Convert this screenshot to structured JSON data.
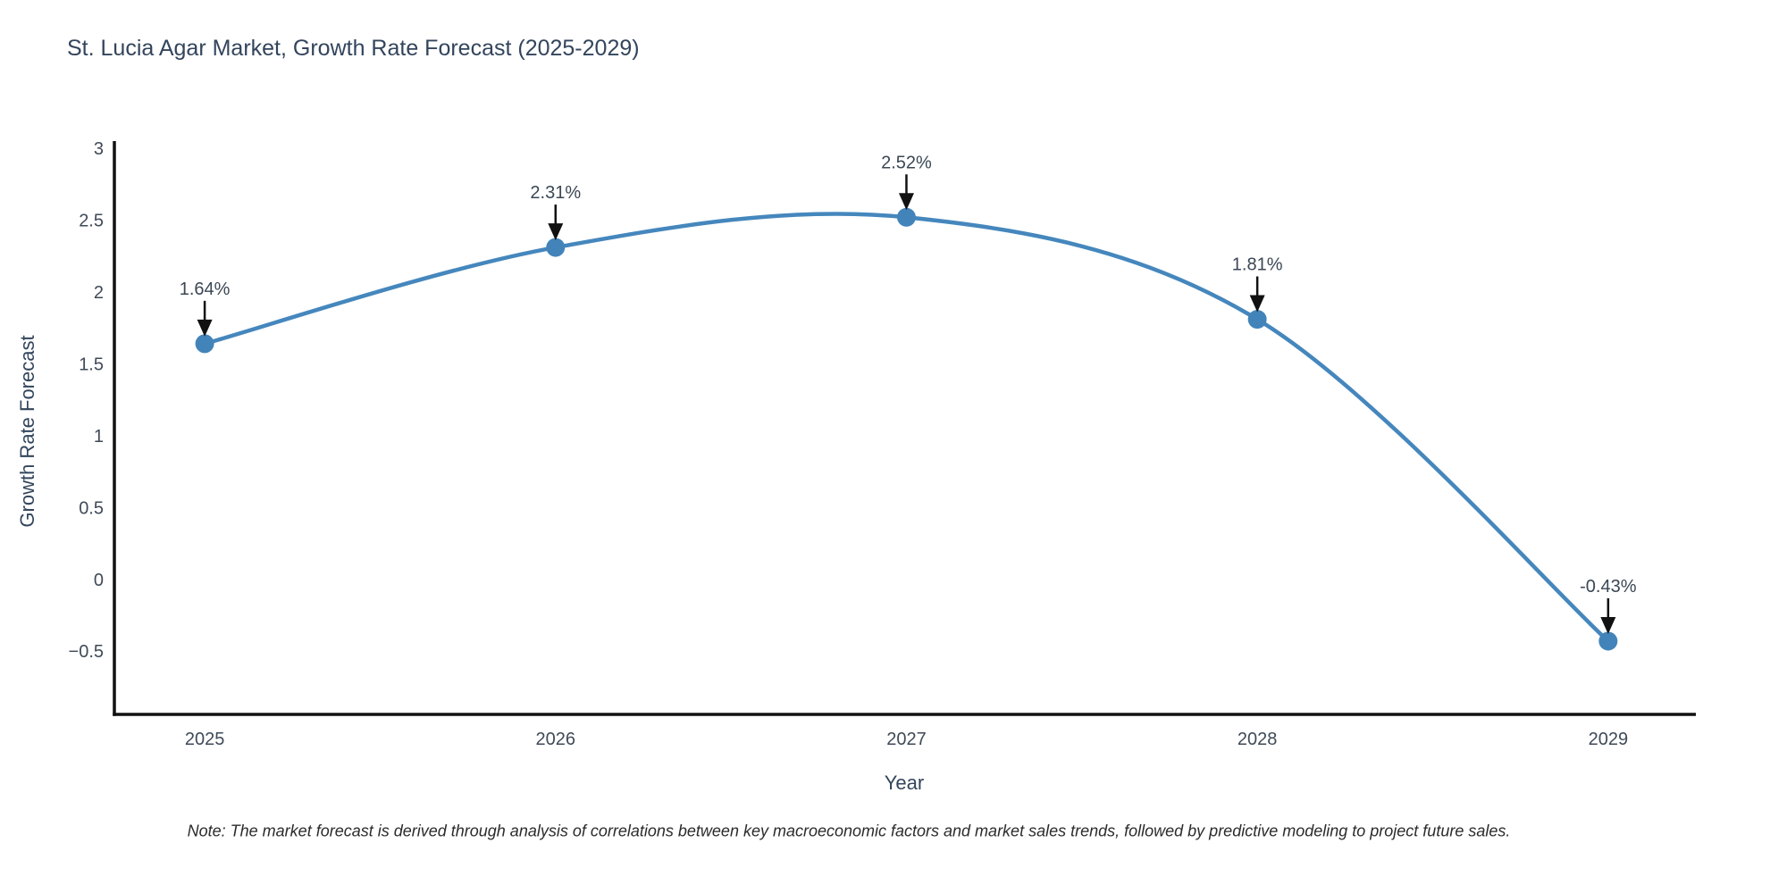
{
  "note": "Note: The market forecast is derived through analysis of correlations between key macroeconomic factors and market sales trends, followed by predictive modeling to project future sales.",
  "chart_data": {
    "type": "line",
    "title": "St. Lucia Agar Market, Growth Rate Forecast (2025-2029)",
    "xlabel": "Year",
    "ylabel": "Growth Rate Forecast",
    "x": [
      2025,
      2026,
      2027,
      2028,
      2029
    ],
    "x_tick_labels": [
      "2025",
      "2026",
      "2027",
      "2028",
      "2029"
    ],
    "values": [
      1.64,
      2.31,
      2.52,
      1.81,
      -0.43
    ],
    "point_labels": [
      "1.64%",
      "2.31%",
      "2.52%",
      "1.81%",
      "-0.43%"
    ],
    "y_ticks": [
      3,
      2.5,
      2,
      1.5,
      1,
      0.5,
      0,
      -0.5
    ],
    "y_tick_labels": [
      "3",
      "2.5",
      "2",
      "1.5",
      "1",
      "0.5",
      "0",
      "−0.5"
    ],
    "xlim": [
      2024.74,
      2029.25
    ],
    "ylim": [
      -0.94,
      3.05
    ],
    "grid": false,
    "legend": false,
    "line_shape": "spline",
    "colors": {
      "line": "#4587bd",
      "marker": "#4284ba",
      "axis": "#111111",
      "arrow": "#111111",
      "title_text": "#33455c",
      "tick_text": "#3f4a57",
      "annotation_text": "#3b4754",
      "note_text": "#2b2b2b"
    }
  }
}
